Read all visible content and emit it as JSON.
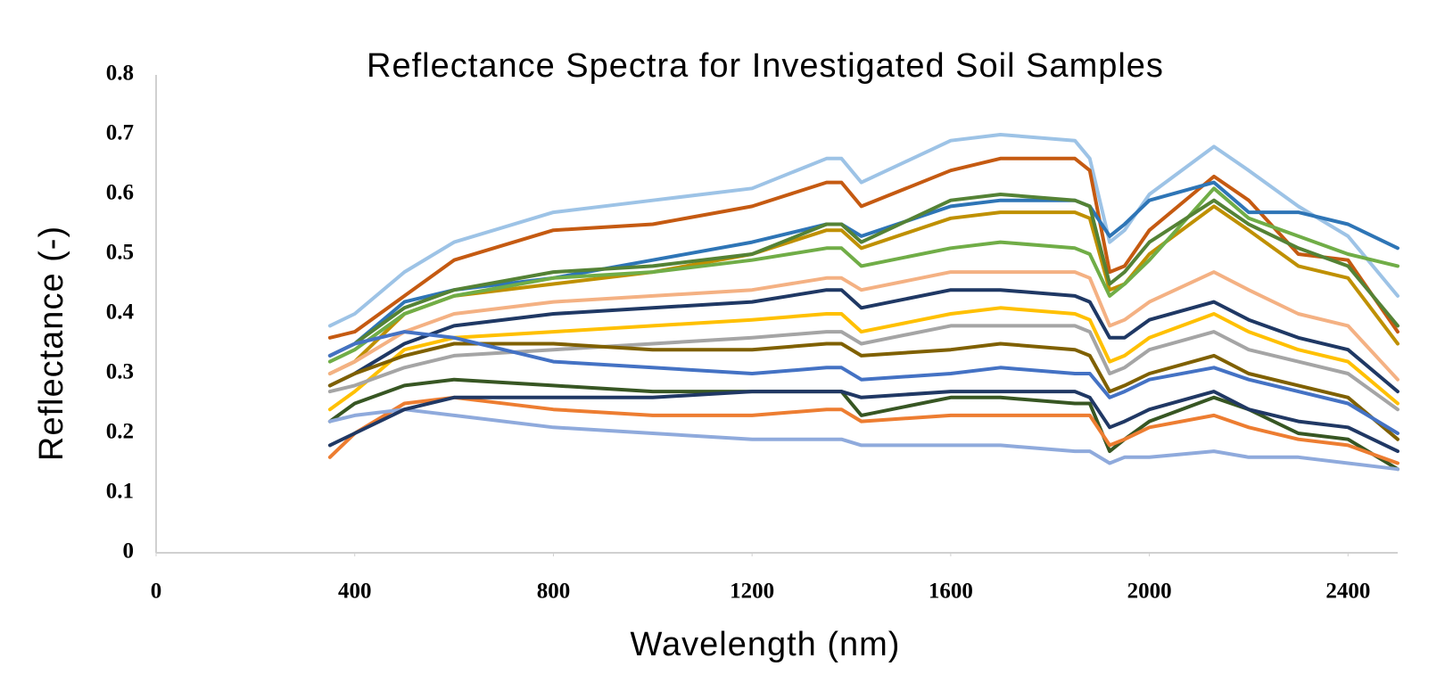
{
  "chart_data": {
    "type": "line",
    "title": "Reflectance Spectra for Investigated Soil Samples",
    "x_label": "Wavelength (nm)",
    "y_label": "Reflectance (-)",
    "xlim": [
      0,
      2500
    ],
    "xticks": [
      0,
      400,
      800,
      1200,
      1600,
      2000,
      2400
    ],
    "ylim": [
      0,
      0.8
    ],
    "yticks": [
      0,
      0.1,
      0.2,
      0.3,
      0.4,
      0.5,
      0.6,
      0.7,
      0.8
    ],
    "grid": false,
    "x": [
      350,
      400,
      500,
      600,
      800,
      1000,
      1200,
      1350,
      1380,
      1420,
      1600,
      1700,
      1850,
      1880,
      1920,
      1950,
      2000,
      2130,
      2200,
      2300,
      2400,
      2500
    ],
    "series": [
      {
        "color": "#9dc3e6",
        "values": [
          0.38,
          0.4,
          0.47,
          0.52,
          0.57,
          0.59,
          0.61,
          0.66,
          0.66,
          0.62,
          0.69,
          0.7,
          0.69,
          0.66,
          0.52,
          0.54,
          0.6,
          0.68,
          0.64,
          0.58,
          0.53,
          0.43
        ]
      },
      {
        "color": "#c55a11",
        "values": [
          0.36,
          0.37,
          0.43,
          0.49,
          0.54,
          0.55,
          0.58,
          0.62,
          0.62,
          0.58,
          0.64,
          0.66,
          0.66,
          0.64,
          0.47,
          0.48,
          0.54,
          0.63,
          0.59,
          0.5,
          0.49,
          0.37
        ]
      },
      {
        "color": "#2e75b6",
        "values": [
          0.33,
          0.35,
          0.42,
          0.44,
          0.46,
          0.49,
          0.52,
          0.55,
          0.55,
          0.53,
          0.58,
          0.59,
          0.59,
          0.58,
          0.53,
          0.55,
          0.59,
          0.62,
          0.57,
          0.57,
          0.55,
          0.51
        ]
      },
      {
        "color": "#bf9000",
        "values": [
          0.3,
          0.32,
          0.4,
          0.43,
          0.45,
          0.47,
          0.5,
          0.54,
          0.54,
          0.51,
          0.56,
          0.57,
          0.57,
          0.56,
          0.44,
          0.45,
          0.5,
          0.58,
          0.54,
          0.48,
          0.46,
          0.35
        ]
      },
      {
        "color": "#70ad47",
        "values": [
          0.32,
          0.34,
          0.4,
          0.43,
          0.46,
          0.47,
          0.49,
          0.51,
          0.51,
          0.48,
          0.51,
          0.52,
          0.51,
          0.5,
          0.43,
          0.45,
          0.49,
          0.61,
          0.56,
          0.53,
          0.5,
          0.48
        ]
      },
      {
        "color": "#548235",
        "values": [
          0.33,
          0.35,
          0.41,
          0.44,
          0.47,
          0.48,
          0.5,
          0.55,
          0.55,
          0.52,
          0.59,
          0.6,
          0.59,
          0.58,
          0.45,
          0.47,
          0.52,
          0.59,
          0.55,
          0.51,
          0.48,
          0.38
        ]
      },
      {
        "color": "#f4b183",
        "values": [
          0.3,
          0.32,
          0.37,
          0.4,
          0.42,
          0.43,
          0.44,
          0.46,
          0.46,
          0.44,
          0.47,
          0.47,
          0.47,
          0.46,
          0.38,
          0.39,
          0.42,
          0.47,
          0.44,
          0.4,
          0.38,
          0.29
        ]
      },
      {
        "color": "#1f3864",
        "values": [
          0.28,
          0.3,
          0.35,
          0.38,
          0.4,
          0.41,
          0.42,
          0.44,
          0.44,
          0.41,
          0.44,
          0.44,
          0.43,
          0.42,
          0.36,
          0.36,
          0.39,
          0.42,
          0.39,
          0.36,
          0.34,
          0.27
        ]
      },
      {
        "color": "#ffc000",
        "values": [
          0.24,
          0.27,
          0.34,
          0.36,
          0.37,
          0.38,
          0.39,
          0.4,
          0.4,
          0.37,
          0.4,
          0.41,
          0.4,
          0.39,
          0.32,
          0.33,
          0.36,
          0.4,
          0.37,
          0.34,
          0.32,
          0.25
        ]
      },
      {
        "color": "#a5a5a5",
        "values": [
          0.27,
          0.28,
          0.31,
          0.33,
          0.34,
          0.35,
          0.36,
          0.37,
          0.37,
          0.35,
          0.38,
          0.38,
          0.38,
          0.37,
          0.3,
          0.31,
          0.34,
          0.37,
          0.34,
          0.32,
          0.3,
          0.24
        ]
      },
      {
        "color": "#7f6000",
        "values": [
          0.28,
          0.3,
          0.33,
          0.35,
          0.35,
          0.34,
          0.34,
          0.35,
          0.35,
          0.33,
          0.34,
          0.35,
          0.34,
          0.33,
          0.27,
          0.28,
          0.3,
          0.33,
          0.3,
          0.28,
          0.26,
          0.19
        ]
      },
      {
        "color": "#4472c4",
        "values": [
          0.33,
          0.35,
          0.37,
          0.36,
          0.32,
          0.31,
          0.3,
          0.31,
          0.31,
          0.29,
          0.3,
          0.31,
          0.3,
          0.3,
          0.26,
          0.27,
          0.29,
          0.31,
          0.29,
          0.27,
          0.25,
          0.2
        ]
      },
      {
        "color": "#375623",
        "values": [
          0.22,
          0.25,
          0.28,
          0.29,
          0.28,
          0.27,
          0.27,
          0.27,
          0.27,
          0.23,
          0.26,
          0.26,
          0.25,
          0.25,
          0.17,
          0.19,
          0.22,
          0.26,
          0.24,
          0.2,
          0.19,
          0.14
        ]
      },
      {
        "color": "#ed7d31",
        "values": [
          0.16,
          0.2,
          0.25,
          0.26,
          0.24,
          0.23,
          0.23,
          0.24,
          0.24,
          0.22,
          0.23,
          0.23,
          0.23,
          0.23,
          0.18,
          0.19,
          0.21,
          0.23,
          0.21,
          0.19,
          0.18,
          0.15
        ]
      },
      {
        "color": "#8faadc",
        "values": [
          0.22,
          0.23,
          0.24,
          0.23,
          0.21,
          0.2,
          0.19,
          0.19,
          0.19,
          0.18,
          0.18,
          0.18,
          0.17,
          0.17,
          0.15,
          0.16,
          0.16,
          0.17,
          0.16,
          0.16,
          0.15,
          0.14
        ]
      },
      {
        "color": "#203864",
        "values": [
          0.18,
          0.2,
          0.24,
          0.26,
          0.26,
          0.26,
          0.27,
          0.27,
          0.27,
          0.26,
          0.27,
          0.27,
          0.27,
          0.26,
          0.21,
          0.22,
          0.24,
          0.27,
          0.24,
          0.22,
          0.21,
          0.17
        ]
      }
    ]
  }
}
